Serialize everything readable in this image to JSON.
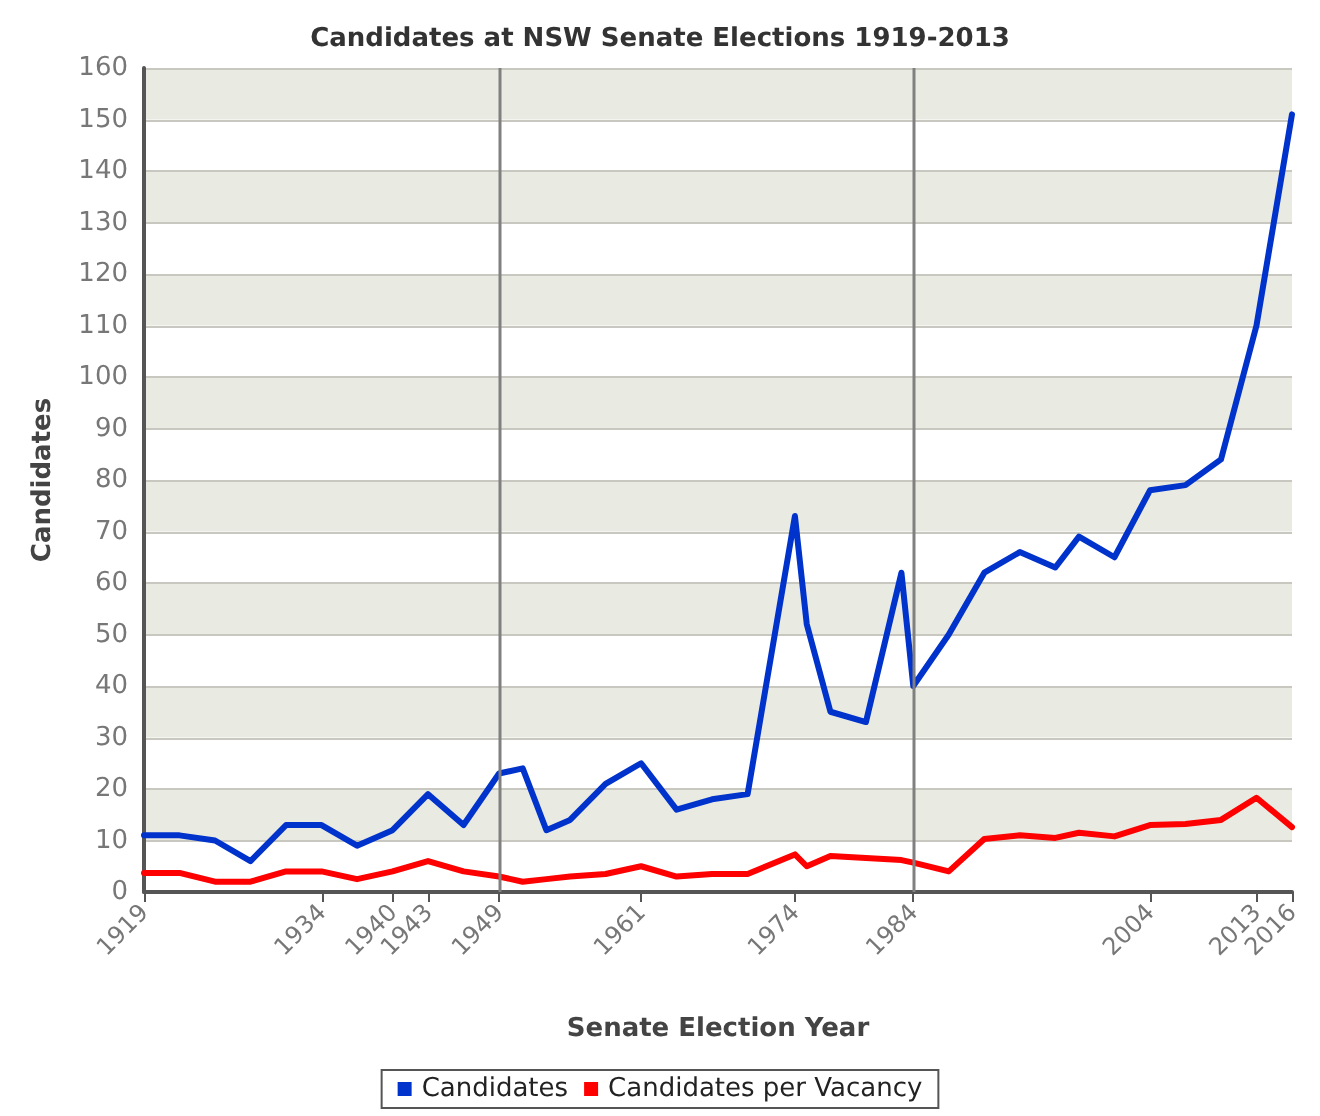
{
  "chart_data": {
    "type": "line",
    "title": "Candidates at NSW Senate Elections 1919-2013",
    "xlabel": "Senate Election Year",
    "ylabel": "Candidates",
    "x": [
      1919,
      1922,
      1925,
      1928,
      1931,
      1934,
      1937,
      1940,
      1943,
      1946,
      1949,
      1951,
      1953,
      1955,
      1958,
      1961,
      1964,
      1967,
      1970,
      1974,
      1975,
      1977,
      1980,
      1983,
      1984,
      1987,
      1990,
      1993,
      1996,
      1998,
      2001,
      2004,
      2007,
      2010,
      2013,
      2016
    ],
    "series": [
      {
        "name": "Candidates",
        "color": "#0033cc",
        "values": [
          11,
          11,
          10,
          6,
          13,
          13,
          9,
          12,
          19,
          13,
          23,
          24,
          12,
          14,
          21,
          25,
          16,
          18,
          19,
          73,
          52,
          35,
          33,
          62,
          40,
          50,
          62,
          66,
          63,
          69,
          65,
          78,
          79,
          84,
          110,
          151
        ]
      },
      {
        "name": "Candidates per Vacancy",
        "color": "#ff0000",
        "values": [
          3.7,
          3.7,
          2,
          2,
          4,
          4,
          2.5,
          4,
          6,
          4,
          3,
          2,
          2.5,
          3,
          3.5,
          5,
          3,
          3.5,
          3.5,
          7.3,
          5,
          7,
          6.6,
          6.2,
          5.7,
          4,
          10.3,
          11,
          10.5,
          11.5,
          10.8,
          13,
          13.2,
          14,
          18.3,
          12.6
        ]
      }
    ],
    "xlim": [
      1919,
      2016
    ],
    "xticks": [
      1919,
      1934,
      1940,
      1943,
      1949,
      1961,
      1974,
      1984,
      2004,
      2013,
      2016
    ],
    "ylim": [
      0,
      160
    ],
    "yticks": [
      0,
      10,
      20,
      30,
      40,
      50,
      60,
      70,
      80,
      90,
      100,
      110,
      120,
      130,
      140,
      150,
      160
    ],
    "ref_lines": [
      {
        "axis": "x",
        "value": 1949,
        "color": "#808080"
      },
      {
        "axis": "x",
        "value": 1984,
        "color": "#808080"
      }
    ],
    "grid": "y",
    "legend": "bottom",
    "marker": "none",
    "line_style": "solid"
  }
}
